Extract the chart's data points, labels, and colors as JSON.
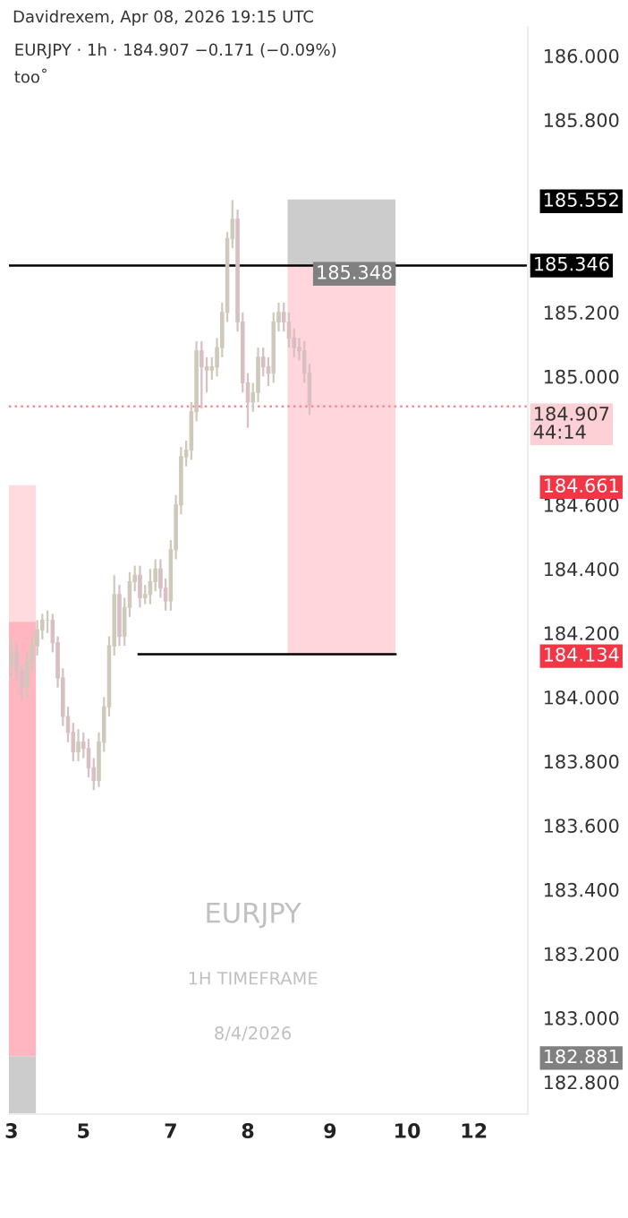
{
  "chart_data": {
    "type": "candlestick",
    "title": "EURJPY · 1h · 184.907 −0.171 (−0.09%)",
    "subtitle": "Davidrexem, Apr 08, 2026 19:15 UTC",
    "annotations": [
      "too˚",
      "EURJPY",
      "1H TIMEFRAME",
      "8/4/2026"
    ],
    "colors": [
      "#cfc9bb",
      "#d8bfc2",
      "#d8bfc2",
      "#cfc9bb",
      "#cfc9bb",
      "#cfc9bb",
      "#cfc9bb",
      "#cfc9bb",
      "#d8bfc2",
      "#d8bfc2",
      "#d8bfc2",
      "#d8bfc2",
      "#d8bfc2",
      "#cfc9bb",
      "#d8bfc2",
      "#d8bfc2",
      "#d8bfc2",
      "#cfc9bb",
      "#cfc9bb",
      "#cfc9bb",
      "#cfc9bb",
      "#d8bfc2",
      "#cfc9bb",
      "#cfc9bb",
      "#cfc9bb",
      "#d8bfc2",
      "#cfc9bb",
      "#cfc9bb",
      "#cfc9bb",
      "#d8bfc2",
      "#d8bfc2",
      "#cfc9bb",
      "#cfc9bb",
      "#cfc9bb",
      "#cfc9bb",
      "#cfc9bb",
      "#cfc9bb",
      "#d8bfc2",
      "#d8bfc2",
      "#cfc9bb",
      "#cfc9bb",
      "#cfc9bb",
      "#cfc9bb",
      "#cfc9bb",
      "#d8bfc2",
      "#d8bfc2",
      "#d8bfc2",
      "#cfc9bb",
      "#cfc9bb",
      "#d8bfc2",
      "#d8bfc2",
      "#cfc9bb",
      "#cfc9bb",
      "#d8bfc2",
      "#d8bfc2",
      "#d8bfc2",
      "#d8bfc2",
      "#d8bfc2",
      "#d8bfc2",
      null,
      null,
      null,
      null,
      null,
      null,
      null,
      null,
      null,
      null,
      null,
      null,
      null,
      null,
      null,
      null,
      null,
      null,
      null,
      null,
      null,
      null,
      null,
      null,
      null,
      null,
      null,
      null,
      null,
      null,
      null,
      null,
      null,
      null,
      null,
      null,
      null,
      null,
      null,
      null,
      null,
      null
    ],
    "categories": [
      "3",
      null,
      null,
      null,
      null,
      null,
      null,
      null,
      null,
      null,
      null,
      null,
      null,
      null,
      "5",
      null,
      null,
      null,
      null,
      null,
      null,
      null,
      null,
      null,
      null,
      null,
      null,
      null,
      null,
      null,
      null,
      "7",
      null,
      null,
      null,
      null,
      null,
      null,
      null,
      null,
      null,
      null,
      null,
      null,
      null,
      null,
      "8",
      null,
      null,
      null,
      null,
      null,
      null,
      null,
      null,
      null,
      null,
      null,
      null,
      null,
      null,
      null,
      "9",
      null,
      null,
      null,
      null,
      null,
      null,
      null,
      null,
      null,
      null,
      null,
      null,
      null,
      null,
      "10",
      null,
      null,
      null,
      null,
      null,
      null,
      null,
      null,
      null,
      null,
      null,
      null,
      "12",
      null,
      null,
      null,
      null,
      null,
      null,
      null,
      null,
      null,
      null
    ],
    "ohlc": [
      [
        184.1,
        184.18,
        184.06,
        184.14
      ],
      [
        184.14,
        184.17,
        184.05,
        184.08
      ],
      [
        184.08,
        184.1,
        183.99,
        184.03
      ],
      [
        184.03,
        184.14,
        184.0,
        184.11
      ],
      [
        184.11,
        184.19,
        184.08,
        184.16
      ],
      [
        184.16,
        184.24,
        184.13,
        184.21
      ],
      [
        184.21,
        184.26,
        184.18,
        184.24
      ],
      [
        184.24,
        184.27,
        184.2,
        184.24
      ],
      [
        184.24,
        184.26,
        184.14,
        184.17
      ],
      [
        184.17,
        184.19,
        184.03,
        184.06
      ],
      [
        184.06,
        184.09,
        183.91,
        183.94
      ],
      [
        183.94,
        183.97,
        183.86,
        183.89
      ],
      [
        183.89,
        183.92,
        183.8,
        183.83
      ],
      [
        183.83,
        183.9,
        183.8,
        183.86
      ],
      [
        183.86,
        183.89,
        183.81,
        183.84
      ],
      [
        183.84,
        183.87,
        183.75,
        183.78
      ],
      [
        183.78,
        183.81,
        183.71,
        183.74
      ],
      [
        183.74,
        183.89,
        183.72,
        183.86
      ],
      [
        183.86,
        184.0,
        183.83,
        183.97
      ],
      [
        183.97,
        184.19,
        183.94,
        184.16
      ],
      [
        184.16,
        184.38,
        184.13,
        184.32
      ],
      [
        184.32,
        184.35,
        184.16,
        184.19
      ],
      [
        184.19,
        184.31,
        184.16,
        184.28
      ],
      [
        184.28,
        184.39,
        184.25,
        184.36
      ],
      [
        184.36,
        184.41,
        184.33,
        184.38
      ],
      [
        184.38,
        184.41,
        184.28,
        184.31
      ],
      [
        184.31,
        184.35,
        184.29,
        184.32
      ],
      [
        184.32,
        184.4,
        184.29,
        184.36
      ],
      [
        184.36,
        184.43,
        184.33,
        184.4
      ],
      [
        184.4,
        184.43,
        184.31,
        184.34
      ],
      [
        184.34,
        184.37,
        184.27,
        184.3
      ],
      [
        184.3,
        184.49,
        184.27,
        184.46
      ],
      [
        184.46,
        184.63,
        184.43,
        184.6
      ],
      [
        184.6,
        184.78,
        184.57,
        184.75
      ],
      [
        184.75,
        184.8,
        184.72,
        184.77
      ],
      [
        184.77,
        184.92,
        184.74,
        184.89
      ],
      [
        184.89,
        185.11,
        184.86,
        185.08
      ],
      [
        185.08,
        185.11,
        184.9,
        185.03
      ],
      [
        185.03,
        185.06,
        184.95,
        185.02
      ],
      [
        185.02,
        185.06,
        184.99,
        185.03
      ],
      [
        185.03,
        185.12,
        185.0,
        185.09
      ],
      [
        185.09,
        185.23,
        185.06,
        185.2
      ],
      [
        185.2,
        185.45,
        185.17,
        185.43
      ],
      [
        185.43,
        185.55,
        185.4,
        185.49
      ],
      [
        185.49,
        185.52,
        185.14,
        185.17
      ],
      [
        185.17,
        185.2,
        184.95,
        184.98
      ],
      [
        184.98,
        185.01,
        184.84,
        184.92
      ],
      [
        184.92,
        184.98,
        184.89,
        184.95
      ],
      [
        184.95,
        185.09,
        184.92,
        185.06
      ],
      [
        185.06,
        185.09,
        185.0,
        185.03
      ],
      [
        185.03,
        185.06,
        184.97,
        185.01
      ],
      [
        185.01,
        185.2,
        184.98,
        185.17
      ],
      [
        185.17,
        185.23,
        185.14,
        185.2
      ],
      [
        185.2,
        185.23,
        185.14,
        185.17
      ],
      [
        185.17,
        185.2,
        185.09,
        185.12
      ],
      [
        185.12,
        185.15,
        185.06,
        185.09
      ],
      [
        185.09,
        185.12,
        185.05,
        185.08
      ],
      [
        185.08,
        185.11,
        184.98,
        185.01
      ],
      [
        185.01,
        185.04,
        184.88,
        184.91
      ],
      null,
      null,
      null,
      null,
      null,
      null,
      null,
      null,
      null,
      null,
      null,
      null,
      null,
      null,
      null,
      null,
      null,
      null,
      null,
      null,
      null,
      null,
      null,
      null,
      null,
      null,
      null,
      null,
      null,
      null,
      null,
      null,
      null,
      null,
      null,
      null,
      null,
      null,
      null,
      null,
      null,
      null
    ],
    "ylim": [
      182.7,
      186.09
    ],
    "yticks": [
      {
        "value": 182.8,
        "label": "182.800"
      },
      {
        "value": 182.881,
        "label": "182.881"
      },
      {
        "value": 183.0,
        "label": "183.000"
      },
      {
        "value": 183.2,
        "label": "183.200"
      },
      {
        "value": 183.4,
        "label": "183.400"
      },
      {
        "value": 183.6,
        "label": "183.600"
      },
      {
        "value": 183.8,
        "label": "183.800"
      },
      {
        "value": 184.0,
        "label": "184.000"
      },
      {
        "value": 184.134,
        "label": "184.134"
      },
      {
        "value": 184.2,
        "label": "184.200"
      },
      {
        "value": 184.4,
        "label": "184.400"
      },
      {
        "value": 184.6,
        "label": "184.600"
      },
      {
        "value": 184.661,
        "label": "184.661"
      },
      {
        "value": 185.0,
        "label": "185.000"
      },
      {
        "value": 185.2,
        "label": "185.200"
      },
      {
        "value": 185.552,
        "label": "185.552"
      },
      {
        "value": 185.8,
        "label": "185.800"
      },
      {
        "value": 186.0,
        "label": "186.000"
      }
    ],
    "ref_lines": [
      {
        "axis": "y",
        "value": 185.346,
        "label": "185.346",
        "color": "#000000"
      },
      {
        "axis": "y",
        "value": 184.134,
        "color": "#000000"
      },
      {
        "axis": "y",
        "value": 184.907,
        "label": "184.907\n44:14",
        "color": "#f28b95",
        "line_style": "dotted"
      }
    ],
    "bands": [
      {
        "axis": "y",
        "from": 185.348,
        "to": 185.552,
        "color": "#cccccc"
      },
      {
        "axis": "y",
        "from": 184.134,
        "to": 185.348,
        "label": "185.348",
        "color": "#ffd6db"
      },
      {
        "axis": "y",
        "from": 184.235,
        "to": 184.661,
        "color": "#ffdadf"
      },
      {
        "axis": "y",
        "from": 182.881,
        "to": 184.235,
        "color": "#ffb6c0"
      },
      {
        "axis": "y",
        "from": 182.7,
        "to": 182.881,
        "color": "#cccccc"
      }
    ],
    "grid": false
  }
}
